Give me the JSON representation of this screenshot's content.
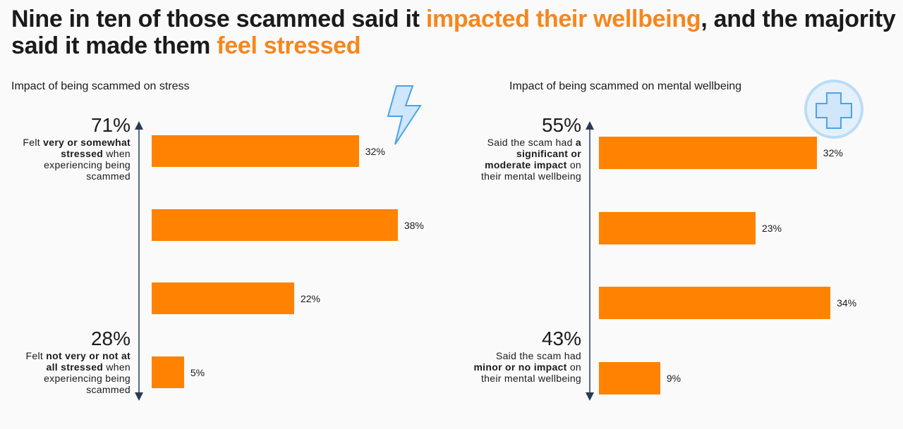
{
  "title": [
    {
      "text": "Nine in ten of those scammed said it ",
      "highlight": false
    },
    {
      "text": "impacted their wellbeing",
      "highlight": true
    },
    {
      "text": ", and the majority said it made them ",
      "highlight": false
    },
    {
      "text": "feel stressed",
      "highlight": true
    }
  ],
  "highlight_color": "#f7861c",
  "chart_data": [
    {
      "type": "bar",
      "orientation": "horizontal",
      "title": "Impact of being scammed on stress",
      "categories": [
        null,
        null,
        null,
        null
      ],
      "values": [
        32,
        38,
        22,
        5
      ],
      "value_labels": [
        "32%",
        "38%",
        "22%",
        "5%"
      ],
      "color": "#ff8200",
      "annotations": [
        {
          "label": "71%",
          "text": [
            {
              "text": "Felt ",
              "bold": false
            },
            {
              "text": "very or somewhat stressed",
              "bold": true
            },
            {
              "text": " when experiencing being scammed",
              "bold": false
            }
          ]
        },
        {
          "label": "28%",
          "text": [
            {
              "text": "Felt ",
              "bold": false
            },
            {
              "text": "not very or not at all stressed",
              "bold": true
            },
            {
              "text": " when experiencing being scammed",
              "bold": false
            }
          ]
        }
      ]
    },
    {
      "type": "bar",
      "orientation": "horizontal",
      "title": "Impact of being scammed on mental wellbeing",
      "categories": [
        null,
        null,
        null,
        null
      ],
      "values": [
        32,
        23,
        34,
        9
      ],
      "value_labels": [
        "32%",
        "23%",
        "34%",
        "9%"
      ],
      "color": "#ff8200",
      "annotations": [
        {
          "label": "55%",
          "text": [
            {
              "text": "Said the scam had ",
              "bold": false
            },
            {
              "text": "a significant or moderate impact",
              "bold": true
            },
            {
              "text": " on their mental wellbeing",
              "bold": false
            }
          ]
        },
        {
          "label": "43%",
          "text": [
            {
              "text": "Said the scam had ",
              "bold": false
            },
            {
              "text": "minor or no impact",
              "bold": true
            },
            {
              "text": " on their mental wellbeing",
              "bold": false
            }
          ]
        }
      ]
    }
  ]
}
